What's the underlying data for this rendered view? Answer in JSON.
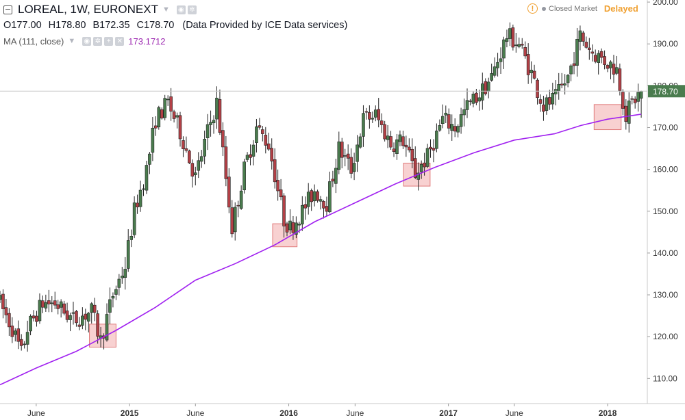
{
  "header": {
    "symbol": "LOREAL, 1W, EURONEXT",
    "ohlc": [
      {
        "k": "O",
        "v": "177.00"
      },
      {
        "k": "H",
        "v": "178.80"
      },
      {
        "k": "B",
        "v": "172.35"
      },
      {
        "k": "C",
        "v": "178.70"
      }
    ],
    "provider": "(Data Provided by ICE Data services)",
    "ma_label": "MA (111, close)",
    "ma_value": "173.1712",
    "market_status": "Closed Market",
    "delay_status": "Delayed",
    "alert_glyph": "!"
  },
  "colors": {
    "up": "#4a7c4e",
    "down": "#b24046",
    "ma": "#a020f0",
    "price_tag": "#4a7c4e",
    "zone": "#f4b8b8"
  },
  "chart_data": {
    "type": "candlestick",
    "title": "LOREAL, 1W, EURONEXT",
    "x_range": [
      "2014-03-10",
      "2018-04-02"
    ],
    "y_range": [
      104,
      200.5
    ],
    "y_ticks": [
      {
        "value": 110,
        "label": "110.00"
      },
      {
        "value": 120,
        "label": "120.00"
      },
      {
        "value": 130,
        "label": "130.00"
      },
      {
        "value": 140,
        "label": "140.00"
      },
      {
        "value": 150,
        "label": "150.00"
      },
      {
        "value": 160,
        "label": "160.00"
      },
      {
        "value": 170,
        "label": "170.00"
      },
      {
        "value": 180,
        "label": "180.00"
      },
      {
        "value": 190,
        "label": "190.00"
      },
      {
        "value": 200,
        "label": "200.00"
      }
    ],
    "x_ticks": [
      {
        "date": "2014-06-01",
        "label": "June"
      },
      {
        "date": "2015-01-01",
        "label": "2015"
      },
      {
        "date": "2015-06-01",
        "label": "June"
      },
      {
        "date": "2016-01-01",
        "label": "2016"
      },
      {
        "date": "2016-06-01",
        "label": "June"
      },
      {
        "date": "2017-01-01",
        "label": "2017"
      },
      {
        "date": "2017-06-01",
        "label": "June"
      },
      {
        "date": "2018-01-01",
        "label": "2018"
      }
    ],
    "last_price": {
      "value": 178.7,
      "label": "178.70"
    },
    "price_path": [
      [
        "2014-03-10",
        128
      ],
      [
        "2014-04-07",
        122
      ],
      [
        "2014-04-28",
        116
      ],
      [
        "2014-05-12",
        122
      ],
      [
        "2014-06-16",
        128
      ],
      [
        "2014-07-14",
        128
      ],
      [
        "2014-08-25",
        124
      ],
      [
        "2014-10-06",
        126
      ],
      [
        "2014-10-27",
        119
      ],
      [
        "2014-11-24",
        130
      ],
      [
        "2014-12-22",
        137
      ],
      [
        "2015-01-12",
        150
      ],
      [
        "2015-02-09",
        160
      ],
      [
        "2015-03-02",
        172
      ],
      [
        "2015-03-30",
        176
      ],
      [
        "2015-04-27",
        169
      ],
      [
        "2015-06-01",
        158
      ],
      [
        "2015-06-29",
        169
      ],
      [
        "2015-07-20",
        176
      ],
      [
        "2015-08-24",
        146
      ],
      [
        "2015-09-21",
        160
      ],
      [
        "2015-10-19",
        170
      ],
      [
        "2015-11-16",
        166
      ],
      [
        "2015-12-21",
        148
      ],
      [
        "2016-01-04",
        146
      ],
      [
        "2016-02-01",
        150
      ],
      [
        "2016-02-29",
        155
      ],
      [
        "2016-03-28",
        152
      ],
      [
        "2016-04-25",
        165
      ],
      [
        "2016-05-23",
        160
      ],
      [
        "2016-06-20",
        172
      ],
      [
        "2016-07-18",
        173
      ],
      [
        "2016-08-22",
        166
      ],
      [
        "2016-09-19",
        167
      ],
      [
        "2016-10-17",
        159
      ],
      [
        "2016-11-14",
        163
      ],
      [
        "2016-12-19",
        172
      ],
      [
        "2017-01-16",
        170
      ],
      [
        "2017-02-13",
        175
      ],
      [
        "2017-03-13",
        178
      ],
      [
        "2017-04-10",
        182
      ],
      [
        "2017-05-15",
        192
      ],
      [
        "2017-06-12",
        190
      ],
      [
        "2017-07-10",
        183
      ],
      [
        "2017-08-07",
        175
      ],
      [
        "2017-09-04",
        177
      ],
      [
        "2017-10-02",
        182
      ],
      [
        "2017-10-30",
        192
      ],
      [
        "2017-11-27",
        188
      ],
      [
        "2017-12-25",
        186
      ],
      [
        "2018-01-22",
        184
      ],
      [
        "2018-02-12",
        173
      ],
      [
        "2018-02-26",
        176
      ],
      [
        "2018-03-19",
        178.7
      ]
    ],
    "ohlc_last": {
      "open": 177.0,
      "high": 178.8,
      "low": 172.35,
      "close": 178.7
    },
    "series": [
      {
        "name": "MA (111, close)",
        "style": "line",
        "points": [
          [
            "2014-03-10",
            108.5
          ],
          [
            "2014-06-01",
            112.5
          ],
          [
            "2014-09-01",
            116.5
          ],
          [
            "2014-12-01",
            121.5
          ],
          [
            "2015-03-01",
            127.0
          ],
          [
            "2015-06-01",
            133.5
          ],
          [
            "2015-09-01",
            137.5
          ],
          [
            "2015-12-01",
            142.0
          ],
          [
            "2016-03-01",
            147.5
          ],
          [
            "2016-06-01",
            152.0
          ],
          [
            "2016-09-01",
            156.5
          ],
          [
            "2016-12-01",
            160.5
          ],
          [
            "2017-03-01",
            164.0
          ],
          [
            "2017-06-01",
            167.0
          ],
          [
            "2017-09-01",
            168.5
          ],
          [
            "2017-11-01",
            170.5
          ],
          [
            "2018-01-01",
            172.0
          ],
          [
            "2018-03-19",
            173.2
          ]
        ]
      }
    ],
    "zones": [
      {
        "from": "2014-10-01",
        "to": "2014-12-01",
        "low": 117.5,
        "high": 123
      },
      {
        "from": "2015-11-25",
        "to": "2016-01-20",
        "low": 141.5,
        "high": 147
      },
      {
        "from": "2016-09-20",
        "to": "2016-11-20",
        "low": 156,
        "high": 161.5
      },
      {
        "from": "2017-12-01",
        "to": "2018-02-01",
        "low": 169.5,
        "high": 175.5
      }
    ],
    "grid": false
  }
}
